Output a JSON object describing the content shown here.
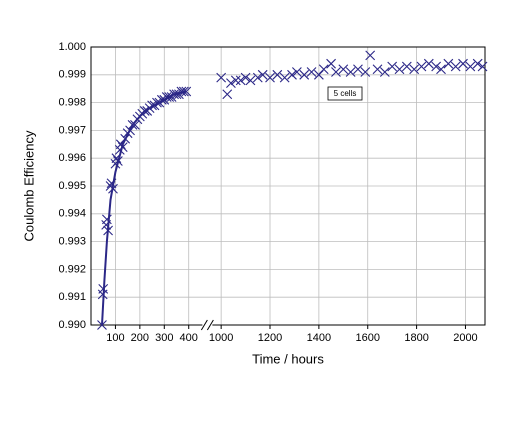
{
  "chart_data": {
    "type": "scatter",
    "xlabel": "Time / hours",
    "ylabel": "Coulomb Efficiency",
    "xlim": [
      0,
      2080
    ],
    "x_break": [
      460,
      960
    ],
    "xticks": [
      100,
      200,
      300,
      400,
      1000,
      1200,
      1400,
      1600,
      1800,
      2000
    ],
    "ylim": [
      0.99,
      1.0
    ],
    "yticks": [
      {
        "value": 0.99,
        "label": "0.990"
      },
      0.991,
      0.992,
      0.993,
      0.994,
      0.995,
      0.996,
      0.997,
      0.998,
      0.999,
      {
        "value": 1.0,
        "label": "1.000"
      }
    ],
    "grid": true,
    "series": [
      {
        "name": "5 cells",
        "color": "#2b2787",
        "x": [
          45,
          48,
          50,
          62,
          65,
          70,
          80,
          84,
          90,
          100,
          104,
          110,
          118,
          122,
          130,
          140,
          150,
          160,
          170,
          180,
          190,
          200,
          210,
          220,
          230,
          240,
          250,
          260,
          270,
          280,
          290,
          300,
          310,
          320,
          330,
          340,
          350,
          360,
          370,
          380,
          390,
          1000,
          1025,
          1040,
          1060,
          1080,
          1100,
          1120,
          1150,
          1170,
          1200,
          1230,
          1260,
          1290,
          1310,
          1340,
          1370,
          1400,
          1420,
          1450,
          1470,
          1500,
          1530,
          1560,
          1590,
          1610,
          1640,
          1670,
          1700,
          1730,
          1760,
          1790,
          1820,
          1850,
          1880,
          1900,
          1930,
          1960,
          1990,
          2020,
          2050,
          2070
        ],
        "values": [
          0.99,
          0.9911,
          0.9913,
          0.9936,
          0.9938,
          0.9934,
          0.995,
          0.9951,
          0.9949,
          0.9958,
          0.996,
          0.9959,
          0.9963,
          0.9965,
          0.9964,
          0.9967,
          0.9969,
          0.997,
          0.9972,
          0.9972,
          0.9974,
          0.9975,
          0.9976,
          0.9977,
          0.9977,
          0.9978,
          0.9979,
          0.9979,
          0.998,
          0.998,
          0.9981,
          0.9981,
          0.9982,
          0.9982,
          0.9982,
          0.9983,
          0.9983,
          0.9983,
          0.9984,
          0.9984,
          0.9984,
          0.9989,
          0.9983,
          0.9987,
          0.9988,
          0.9988,
          0.9989,
          0.9988,
          0.9989,
          0.999,
          0.9989,
          0.999,
          0.9989,
          0.999,
          0.9991,
          0.999,
          0.9991,
          0.999,
          0.9992,
          0.9994,
          0.9991,
          0.9992,
          0.9991,
          0.9992,
          0.9991,
          0.9997,
          0.9992,
          0.9991,
          0.9993,
          0.9992,
          0.9993,
          0.9992,
          0.9993,
          0.9994,
          0.9993,
          0.9992,
          0.9994,
          0.9993,
          0.9994,
          0.9993,
          0.9994,
          0.9993
        ]
      }
    ],
    "fit": {
      "color": "#2b2787",
      "x": [
        45,
        55,
        65,
        80,
        100,
        130,
        170,
        220,
        280,
        340,
        390
      ],
      "values": [
        0.99,
        0.9916,
        0.993,
        0.9945,
        0.9955,
        0.9965,
        0.9972,
        0.9977,
        0.998,
        0.9983,
        0.9984
      ]
    }
  }
}
